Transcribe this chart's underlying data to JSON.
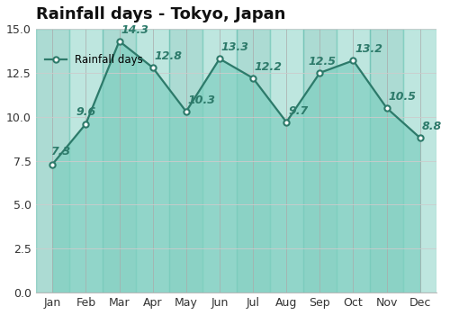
{
  "title": "Rainfall days - Tokyo, Japan",
  "months": [
    "Jan",
    "Feb",
    "Mar",
    "Apr",
    "May",
    "Jun",
    "Jul",
    "Aug",
    "Sep",
    "Oct",
    "Nov",
    "Dec"
  ],
  "values": [
    7.3,
    9.6,
    14.3,
    12.8,
    10.3,
    13.3,
    12.2,
    9.7,
    12.5,
    13.2,
    10.5,
    8.8
  ],
  "line_color": "#2d7a6a",
  "fill_color_light": "#7ecfc0",
  "fill_color_dark": "#5ab8a8",
  "marker_color": "#2d7a6a",
  "marker_face": "#ffffff",
  "legend_label": "Rainfall days",
  "ylim": [
    0,
    15.0
  ],
  "yticks": [
    0.0,
    2.5,
    5.0,
    7.5,
    10.0,
    12.5,
    15.0
  ],
  "grid_color": "#cccccc",
  "vline_color": "#aaaaaa",
  "background_color": "#ffffff",
  "title_fontsize": 13,
  "label_fontsize": 9,
  "annotation_fontsize": 9
}
